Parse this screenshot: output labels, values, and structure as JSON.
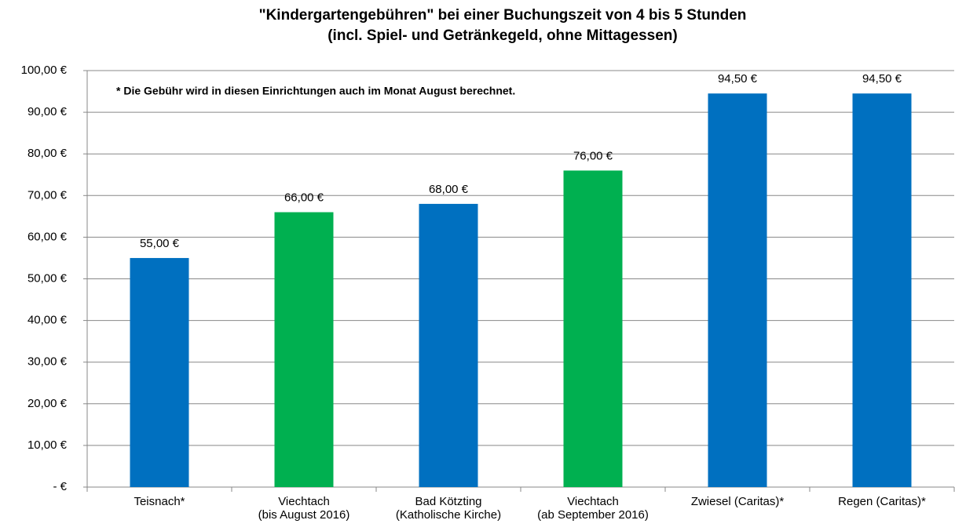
{
  "chart_data": {
    "type": "bar",
    "title": [
      "\"Kindergartengebühren\" bei einer Buchungszeit von 4 bis 5 Stunden",
      "(incl. Spiel- und Getränkegeld, ohne Mittagessen)"
    ],
    "annotation": "* Die Gebühr wird in diesen Einrichtungen auch im Monat August berechnet.",
    "categories": [
      [
        "Teisnach*"
      ],
      [
        "Viechtach",
        "(bis August 2016)"
      ],
      [
        "Bad Kötzting",
        "(Katholische Kirche)"
      ],
      [
        "Viechtach",
        "(ab September 2016)"
      ],
      [
        "Zwiesel (Caritas)*"
      ],
      [
        "Regen (Caritas)*"
      ]
    ],
    "values": [
      55,
      66,
      68,
      76,
      94.5,
      94.5
    ],
    "value_labels": [
      "55,00 €",
      "66,00 €",
      "68,00 €",
      "76,00 €",
      "94,50 €",
      "94,50 €"
    ],
    "colors": [
      "#0070c0",
      "#00b050",
      "#0070c0",
      "#00b050",
      "#0070c0",
      "#0070c0"
    ],
    "ylim": [
      0,
      100
    ],
    "yticks": [
      {
        "value": 0,
        "label": "-  €"
      },
      {
        "value": 10,
        "label": "10,00 €"
      },
      {
        "value": 20,
        "label": "20,00 €"
      },
      {
        "value": 30,
        "label": "30,00 €"
      },
      {
        "value": 40,
        "label": "40,00 €"
      },
      {
        "value": 50,
        "label": "50,00 €"
      },
      {
        "value": 60,
        "label": "60,00 €"
      },
      {
        "value": 70,
        "label": "70,00 €"
      },
      {
        "value": 80,
        "label": "80,00 €"
      },
      {
        "value": 90,
        "label": "90,00 €"
      },
      {
        "value": 100,
        "label": "100,00 €"
      }
    ],
    "grid": true
  }
}
